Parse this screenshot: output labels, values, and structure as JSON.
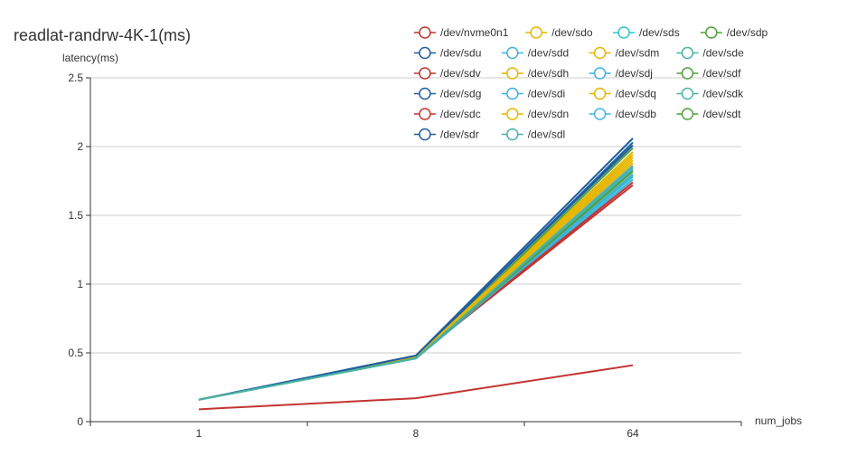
{
  "chart_data": {
    "type": "line",
    "title": "readlat-randrw-4K-1(ms)",
    "xlabel": "num_jobs",
    "ylabel": "latency(ms)",
    "categories": [
      "1",
      "8",
      "64"
    ],
    "ylim": [
      0,
      2.5
    ],
    "yticks": [
      "0",
      "0.5",
      "1",
      "1.5",
      "2",
      "2.5"
    ],
    "grid": true,
    "legend_position": "top-right",
    "series": [
      {
        "name": "/dev/nvme0n1",
        "color": "#c23531",
        "values": [
          0.09,
          0.17,
          0.41
        ]
      },
      {
        "name": "/dev/sdo",
        "color": "#e6b600",
        "values": [
          0.16,
          0.47,
          1.92
        ]
      },
      {
        "name": "/dev/sds",
        "color": "#2ec7c9",
        "values": [
          0.16,
          0.46,
          1.78
        ]
      },
      {
        "name": "/dev/sdp",
        "color": "#4ea03e",
        "values": [
          0.16,
          0.46,
          1.86
        ]
      },
      {
        "name": "/dev/sdu",
        "color": "#1f5e9e",
        "values": [
          0.16,
          0.48,
          2.06
        ]
      },
      {
        "name": "/dev/sdd",
        "color": "#3fb1e3",
        "values": [
          0.16,
          0.46,
          1.83
        ]
      },
      {
        "name": "/dev/sdm",
        "color": "#e6b600",
        "values": [
          0.16,
          0.47,
          1.9
        ]
      },
      {
        "name": "/dev/sde",
        "color": "#48b3a7",
        "values": [
          0.16,
          0.46,
          1.8
        ]
      },
      {
        "name": "/dev/sdv",
        "color": "#c23531",
        "values": [
          0.16,
          0.47,
          1.72
        ]
      },
      {
        "name": "/dev/sdh",
        "color": "#e6b600",
        "values": [
          0.16,
          0.47,
          1.96
        ]
      },
      {
        "name": "/dev/sdj",
        "color": "#3fb1e3",
        "values": [
          0.16,
          0.46,
          1.76
        ]
      },
      {
        "name": "/dev/sdf",
        "color": "#4ea03e",
        "values": [
          0.16,
          0.46,
          1.99
        ]
      },
      {
        "name": "/dev/sdg",
        "color": "#1f5e9e",
        "values": [
          0.16,
          0.47,
          2.03
        ]
      },
      {
        "name": "/dev/sdi",
        "color": "#3fb1e3",
        "values": [
          0.16,
          0.46,
          1.86
        ]
      },
      {
        "name": "/dev/sdq",
        "color": "#e6b600",
        "values": [
          0.16,
          0.47,
          1.88
        ]
      },
      {
        "name": "/dev/sdk",
        "color": "#48b3a7",
        "values": [
          0.16,
          0.46,
          1.84
        ]
      },
      {
        "name": "/dev/sdc",
        "color": "#c23531",
        "values": [
          0.16,
          0.47,
          1.74
        ]
      },
      {
        "name": "/dev/sdn",
        "color": "#e6b600",
        "values": [
          0.16,
          0.47,
          1.94
        ]
      },
      {
        "name": "/dev/sdb",
        "color": "#3fb1e3",
        "values": [
          0.16,
          0.46,
          1.79
        ]
      },
      {
        "name": "/dev/sdt",
        "color": "#4ea03e",
        "values": [
          0.16,
          0.46,
          1.82
        ]
      },
      {
        "name": "/dev/sdr",
        "color": "#1f5e9e",
        "values": [
          0.16,
          0.48,
          2.01
        ]
      },
      {
        "name": "/dev/sdl",
        "color": "#48b3a7",
        "values": [
          0.16,
          0.46,
          1.85
        ]
      }
    ]
  }
}
